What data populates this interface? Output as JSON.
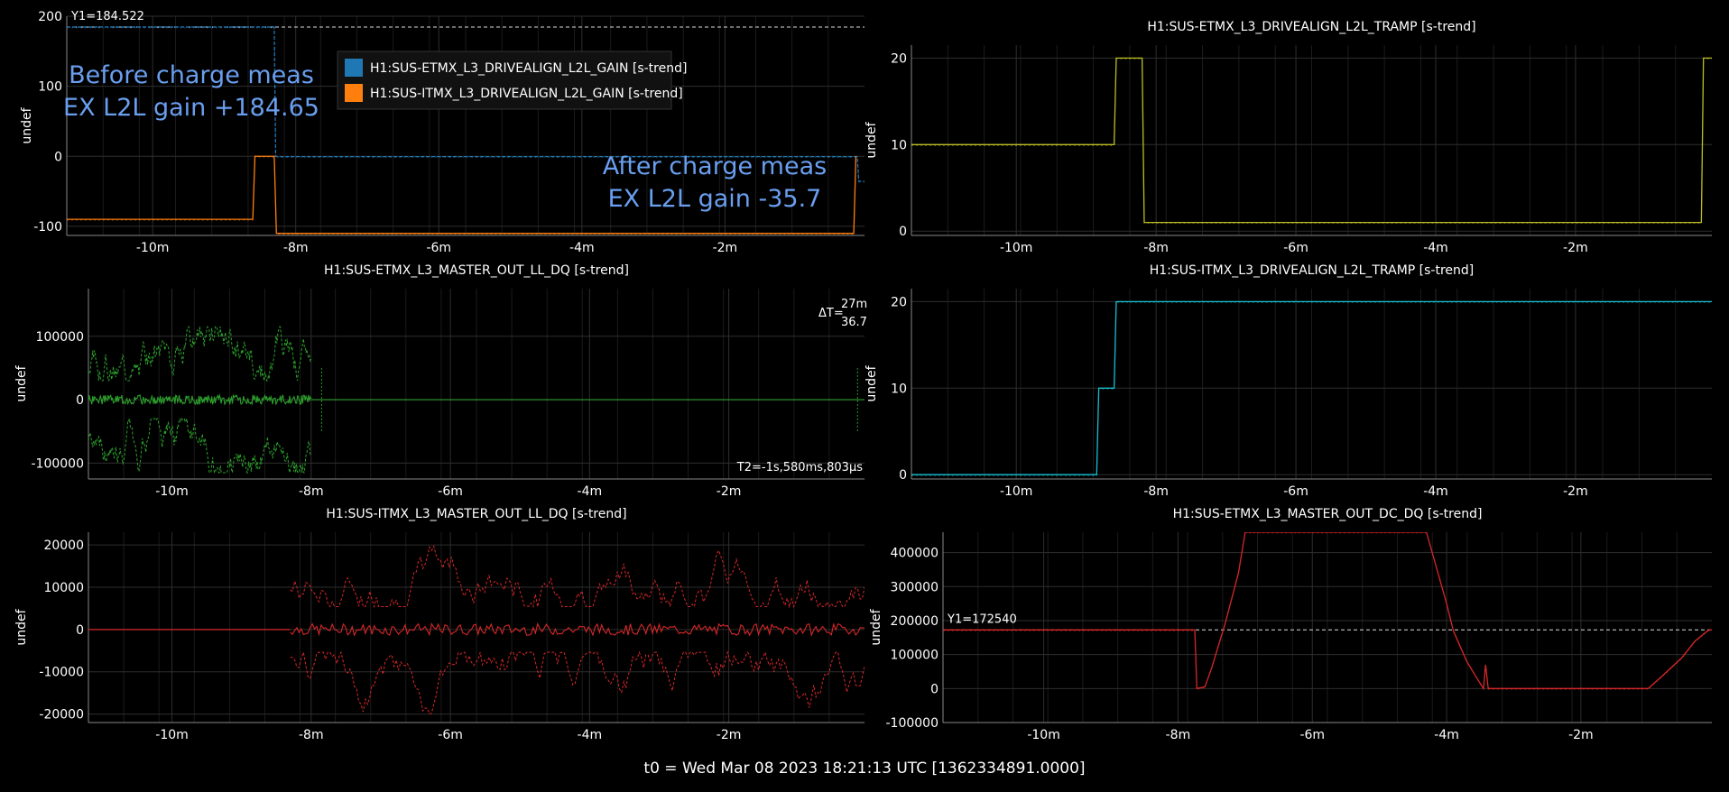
{
  "footer": "t0 = Wed Mar 08 2023 18:21:13 UTC [1362334891.0000]",
  "chart_data": [
    {
      "id": "p1",
      "type": "line",
      "title": "",
      "ylabel": "undef",
      "xlim": [
        -11.2,
        -0.05
      ],
      "ylim": [
        -113,
        200
      ],
      "xticks": [
        {
          "v": -10,
          "label": "-10m"
        },
        {
          "v": -8,
          "label": "-8m"
        },
        {
          "v": -6,
          "label": "-6m"
        },
        {
          "v": -4,
          "label": "-4m"
        },
        {
          "v": -2,
          "label": "-2m"
        }
      ],
      "yticks": [
        {
          "v": 200,
          "label": "200"
        },
        {
          "v": 100,
          "label": "100"
        },
        {
          "v": 0,
          "label": "0"
        },
        {
          "v": -100,
          "label": "-100"
        }
      ],
      "series": [
        {
          "name": "H1:SUS-ETMX_L3_DRIVEALIGN_L2L_GAIN [s-trend]",
          "color": "#1f77b4",
          "dashed": true,
          "x": [
            -11.2,
            -8.3,
            -8.28,
            -8.25,
            -0.15,
            -0.13,
            -0.05
          ],
          "y": [
            184.65,
            184.65,
            0,
            -0.5,
            -0.5,
            -35.7,
            -35.7
          ]
        },
        {
          "name": "H1:SUS-ITMX_L3_DRIVEALIGN_L2L_GAIN [s-trend]",
          "color": "#ff7f0e",
          "dashed": false,
          "x": [
            -11.2,
            -8.6,
            -8.57,
            -8.3,
            -8.27,
            -0.2,
            -0.17
          ],
          "y": [
            -90,
            -90,
            0,
            0,
            -110,
            -110,
            0
          ]
        }
      ],
      "hlines": [
        {
          "y": 184.522,
          "label": "Y1=184.522"
        }
      ],
      "legend": {
        "position": "top-center"
      },
      "annotations": [
        {
          "lines": [
            "Before charge meas",
            "EX L2L gain +184.65"
          ],
          "position": "upper-left"
        },
        {
          "lines": [
            "After charge meas",
            "EX L2L gain -35.7"
          ],
          "position": "right"
        }
      ]
    },
    {
      "id": "p2",
      "type": "line",
      "title": "H1:SUS-ETMX_L3_DRIVEALIGN_L2L_TRAMP [s-trend]",
      "ylabel": "undef",
      "xlim": [
        -11.5,
        -0.05
      ],
      "ylim": [
        -0.5,
        21.5
      ],
      "xticks": [
        {
          "v": -10,
          "label": "-10m"
        },
        {
          "v": -8,
          "label": "-8m"
        },
        {
          "v": -6,
          "label": "-6m"
        },
        {
          "v": -4,
          "label": "-4m"
        },
        {
          "v": -2,
          "label": "-2m"
        }
      ],
      "yticks": [
        {
          "v": 20,
          "label": "20"
        },
        {
          "v": 10,
          "label": "10"
        },
        {
          "v": 0,
          "label": "0"
        }
      ],
      "series": [
        {
          "name": "H1:SUS-ETMX_L3_DRIVEALIGN_L2L_TRAMP",
          "color": "#bcbd22",
          "dashed": false,
          "x": [
            -11.5,
            -8.6,
            -8.57,
            -8.2,
            -8.17,
            -0.2,
            -0.17,
            -0.05
          ],
          "y": [
            10,
            10,
            20,
            20,
            1,
            1,
            20,
            20
          ]
        }
      ]
    },
    {
      "id": "p3",
      "type": "line",
      "title": "H1:SUS-ETMX_L3_MASTER_OUT_LL_DQ [s-trend]",
      "ylabel": "undef",
      "xlim": [
        -11.2,
        -0.05
      ],
      "ylim": [
        -125000,
        175000
      ],
      "xticks": [
        {
          "v": -10,
          "label": "-10m"
        },
        {
          "v": -8,
          "label": "-8m"
        },
        {
          "v": -6,
          "label": "-6m"
        },
        {
          "v": -4,
          "label": "-4m"
        },
        {
          "v": -2,
          "label": "-2m"
        }
      ],
      "yticks": [
        {
          "v": 100000,
          "label": "100000"
        },
        {
          "v": 0,
          "label": "0"
        },
        {
          "v": -100000,
          "label": "-100000"
        }
      ],
      "series": [
        {
          "name": "H1:SUS-ETMX_L3_MASTER_OUT_LL_DQ",
          "color": "#2ca02c",
          "noise": {
            "seed": 3,
            "x0": -11.2,
            "x1": -8.0,
            "env": 100000,
            "spikes": [
              -7.85,
              -0.15
            ]
          }
        }
      ],
      "annotations": [
        {
          "lines": [
            "ΔT=",
            "27m",
            "36.7"
          ],
          "position": "upper-right"
        },
        {
          "lines": [
            "T2=-1s,580ms,803μs"
          ],
          "position": "lower-right"
        }
      ]
    },
    {
      "id": "p4",
      "type": "line",
      "title": "H1:SUS-ITMX_L3_DRIVEALIGN_L2L_TRAMP [s-trend]",
      "ylabel": "undef",
      "xlim": [
        -11.5,
        -0.05
      ],
      "ylim": [
        -0.5,
        21.5
      ],
      "xticks": [
        {
          "v": -10,
          "label": "-10m"
        },
        {
          "v": -8,
          "label": "-8m"
        },
        {
          "v": -6,
          "label": "-6m"
        },
        {
          "v": -4,
          "label": "-4m"
        },
        {
          "v": -2,
          "label": "-2m"
        }
      ],
      "yticks": [
        {
          "v": 20,
          "label": "20"
        },
        {
          "v": 10,
          "label": "10"
        },
        {
          "v": 0,
          "label": "0"
        }
      ],
      "series": [
        {
          "name": "H1:SUS-ITMX_L3_DRIVEALIGN_L2L_TRAMP",
          "color": "#17becf",
          "dashed": false,
          "x": [
            -11.5,
            -8.85,
            -8.82,
            -8.6,
            -8.57,
            -0.05
          ],
          "y": [
            0,
            0,
            10,
            10,
            20,
            20
          ]
        }
      ]
    },
    {
      "id": "p5",
      "type": "line",
      "title": "H1:SUS-ITMX_L3_MASTER_OUT_LL_DQ [s-trend]",
      "ylabel": "undef",
      "xlim": [
        -11.2,
        -0.05
      ],
      "ylim": [
        -22000,
        23000
      ],
      "xticks": [
        {
          "v": -10,
          "label": "-10m"
        },
        {
          "v": -8,
          "label": "-8m"
        },
        {
          "v": -6,
          "label": "-6m"
        },
        {
          "v": -4,
          "label": "-4m"
        },
        {
          "v": -2,
          "label": "-2m"
        }
      ],
      "yticks": [
        {
          "v": 20000,
          "label": "20000"
        },
        {
          "v": 10000,
          "label": "10000"
        },
        {
          "v": 0,
          "label": "0"
        },
        {
          "v": -10000,
          "label": "-10000"
        },
        {
          "v": -20000,
          "label": "-20000"
        }
      ],
      "series": [
        {
          "name": "H1:SUS-ITMX_L3_MASTER_OUT_LL_DQ",
          "color": "#d62728",
          "noise": {
            "seed": 7,
            "x0": -8.3,
            "x1": -0.05,
            "env": 18000,
            "spikes": []
          }
        }
      ]
    },
    {
      "id": "p6",
      "type": "line",
      "title": "H1:SUS-ETMX_L3_MASTER_OUT_DC_DQ [s-trend]",
      "ylabel": "undef",
      "xlim": [
        -11.5,
        -0.05
      ],
      "ylim": [
        -100000,
        460000
      ],
      "xticks": [
        {
          "v": -10,
          "label": "-10m"
        },
        {
          "v": -8,
          "label": "-8m"
        },
        {
          "v": -6,
          "label": "-6m"
        },
        {
          "v": -4,
          "label": "-4m"
        },
        {
          "v": -2,
          "label": "-2m"
        }
      ],
      "yticks": [
        {
          "v": 400000,
          "label": "400000"
        },
        {
          "v": 300000,
          "label": "300000"
        },
        {
          "v": 200000,
          "label": "200000"
        },
        {
          "v": 100000,
          "label": "100000"
        },
        {
          "v": 0,
          "label": "0"
        },
        {
          "v": -100000,
          "label": "-100000"
        }
      ],
      "series": [
        {
          "name": "H1:SUS-ETMX_L3_MASTER_OUT_DC_DQ",
          "color": "#d62728",
          "dashed": false,
          "x": [
            -11.5,
            -7.75,
            -7.72,
            -7.6,
            -7.5,
            -7.3,
            -7.1,
            -7.0,
            -4.3,
            -4.2,
            -4.0,
            -3.9,
            -3.7,
            -3.5,
            -3.45,
            -3.42,
            -3.38,
            -3.35,
            -3.3,
            -1.0,
            -0.8,
            -0.5,
            -0.3,
            -0.1,
            -0.05
          ],
          "y": [
            172540,
            172540,
            0,
            5000,
            60000,
            190000,
            340000,
            460000,
            460000,
            390000,
            250000,
            170000,
            80000,
            15000,
            0,
            70000,
            0,
            0,
            0,
            0,
            35000,
            90000,
            140000,
            172000,
            172540
          ]
        }
      ],
      "hlines": [
        {
          "y": 172540,
          "label": "Y1=172540"
        }
      ]
    }
  ]
}
